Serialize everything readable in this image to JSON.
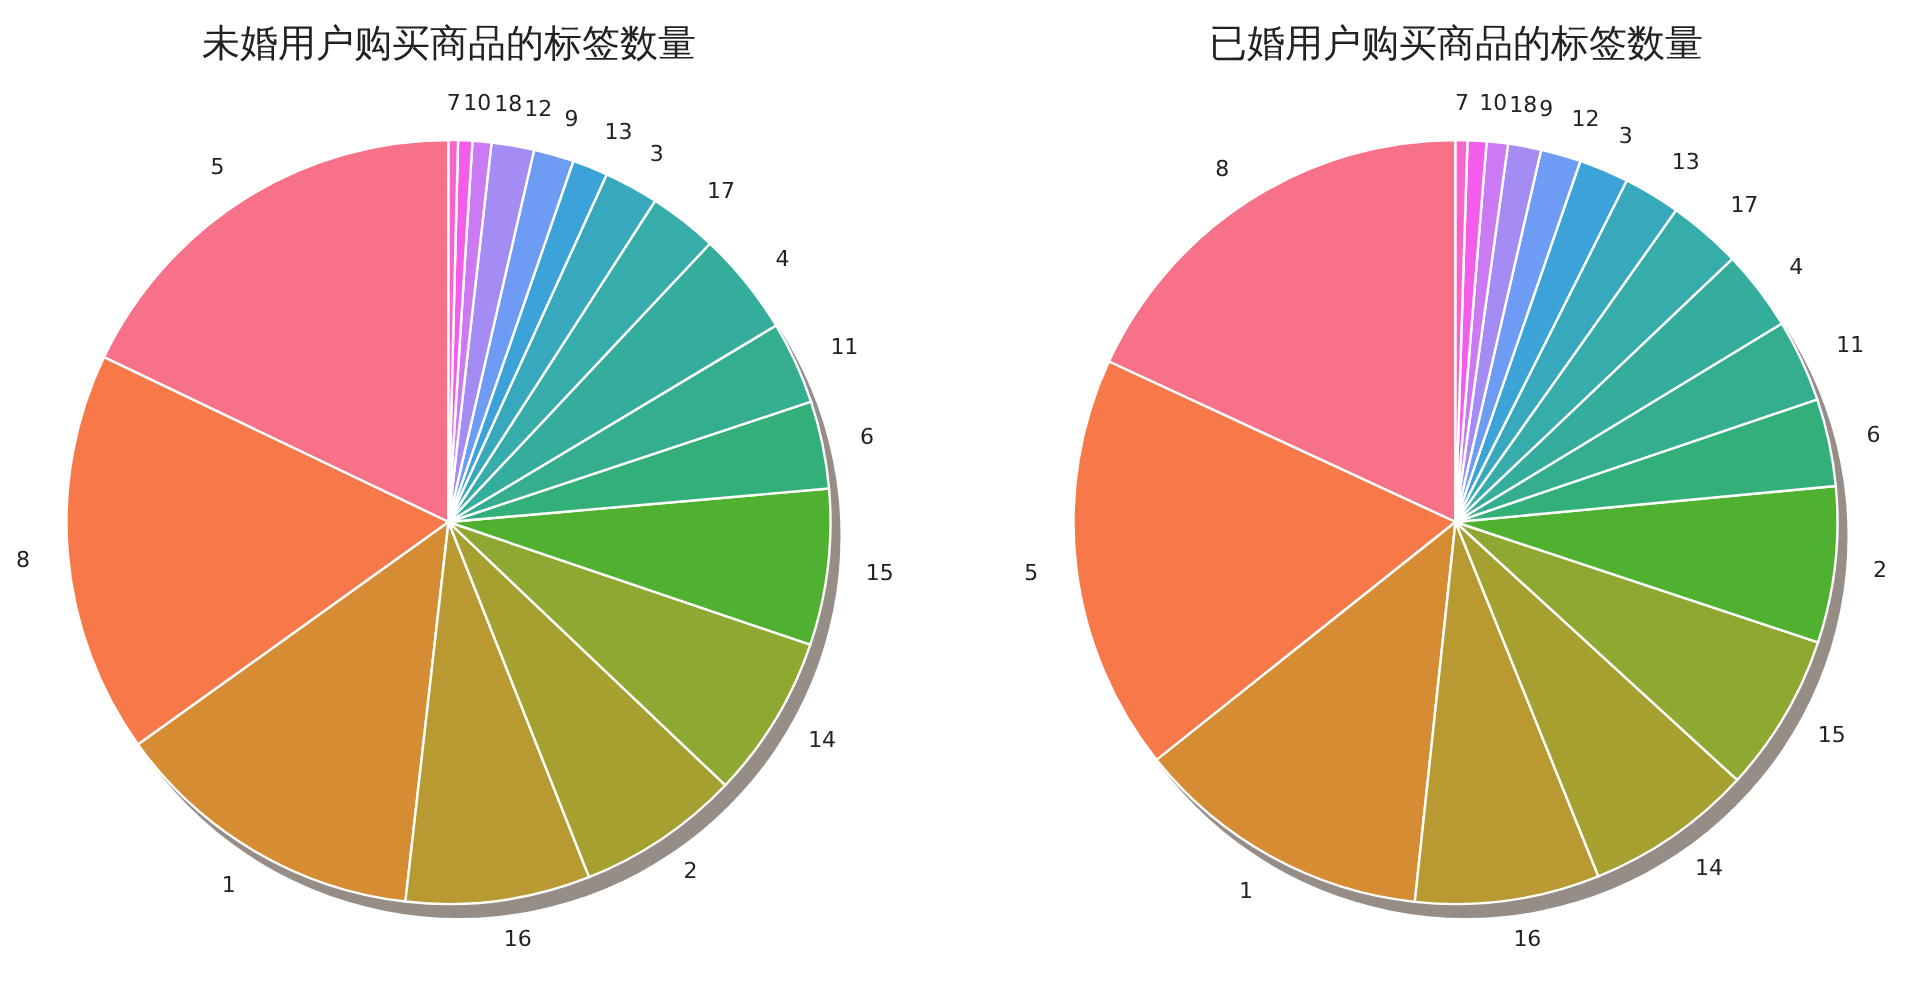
{
  "chart_data": [
    {
      "type": "pie",
      "title": "未婚用户购买商品的标签数量",
      "categories": [
        "5",
        "8",
        "1",
        "16",
        "2",
        "14",
        "15",
        "6",
        "11",
        "4",
        "17",
        "3",
        "13",
        "9",
        "12",
        "18",
        "10",
        "7"
      ],
      "values": [
        17.9,
        17.0,
        13.3,
        7.8,
        6.9,
        6.9,
        6.6,
        3.7,
        3.5,
        4.4,
        2.9,
        2.3,
        1.5,
        1.7,
        1.8,
        0.8,
        0.6,
        0.4
      ],
      "colors": [
        "#f77189",
        "#f7794a",
        "#d68c32",
        "#b99a32",
        "#a6a031",
        "#8ea831",
        "#50b131",
        "#33b07a",
        "#34ae8e",
        "#35ad9c",
        "#36acab",
        "#38a9bc",
        "#3ba3d8",
        "#6e9bf4",
        "#a48cf4",
        "#cc7af4",
        "#f45deb",
        "#f565cc"
      ]
    },
    {
      "type": "pie",
      "title": "已婚用户购买商品的标签数量",
      "categories": [
        "8",
        "5",
        "1",
        "16",
        "14",
        "15",
        "2",
        "6",
        "11",
        "4",
        "17",
        "13",
        "3",
        "12",
        "9",
        "18",
        "10",
        "7"
      ],
      "values": [
        18.1,
        17.6,
        12.6,
        7.8,
        7.1,
        6.7,
        6.6,
        3.7,
        3.5,
        3.4,
        3.1,
        2.4,
        2.1,
        1.7,
        1.4,
        0.9,
        0.8,
        0.5
      ],
      "colors": [
        "#f77189",
        "#f7794a",
        "#d68c32",
        "#b99a32",
        "#a6a031",
        "#8ea831",
        "#50b131",
        "#33b07a",
        "#34ae8e",
        "#35ad9c",
        "#36acab",
        "#38a9bc",
        "#3ba3d8",
        "#6e9bf4",
        "#a48cf4",
        "#cc7af4",
        "#f45deb",
        "#f565cc"
      ]
    }
  ]
}
